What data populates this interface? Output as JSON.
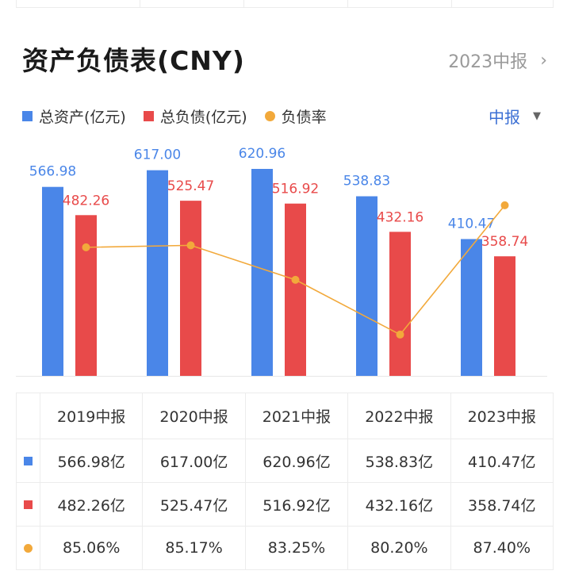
{
  "header": {
    "title": "资产负债表(CNY)",
    "period_link": "2023中报"
  },
  "legend": [
    {
      "label": "总资产(亿元)",
      "color": "#4a86e8",
      "shape": "square"
    },
    {
      "label": "总负债(亿元)",
      "color": "#e84a4a",
      "shape": "square"
    },
    {
      "label": "负债率",
      "color": "#f2a93b",
      "shape": "circle"
    }
  ],
  "period_select": {
    "label": "中报"
  },
  "colors": {
    "assets": "#4a86e8",
    "liabilities": "#e84a4a",
    "ratio": "#f2a93b"
  },
  "chart_data": {
    "type": "bar",
    "categories": [
      "2019中报",
      "2020中报",
      "2021中报",
      "2022中报",
      "2023中报"
    ],
    "series": [
      {
        "name": "总资产(亿元)",
        "type": "bar",
        "values": [
          566.98,
          617.0,
          620.96,
          538.83,
          410.47
        ],
        "labels": [
          "566.98",
          "617.00",
          "620.96",
          "538.83",
          "410.47"
        ]
      },
      {
        "name": "总负债(亿元)",
        "type": "bar",
        "values": [
          482.26,
          525.47,
          516.92,
          432.16,
          358.74
        ],
        "labels": [
          "482.26",
          "525.47",
          "516.92",
          "432.16",
          "358.74"
        ]
      },
      {
        "name": "负债率",
        "type": "line",
        "values": [
          85.06,
          85.17,
          83.25,
          80.2,
          87.4
        ]
      }
    ],
    "ylim": [
      0,
      640
    ],
    "ratio_ylim": [
      77.9,
      90.0
    ]
  },
  "table": {
    "headers": [
      "2019中报",
      "2020中报",
      "2021中报",
      "2022中报",
      "2023中报"
    ],
    "rows": [
      {
        "marker": "square",
        "color": "#4a86e8",
        "cells": [
          "566.98亿",
          "617.00亿",
          "620.96亿",
          "538.83亿",
          "410.47亿"
        ]
      },
      {
        "marker": "square",
        "color": "#e84a4a",
        "cells": [
          "482.26亿",
          "525.47亿",
          "516.92亿",
          "432.16亿",
          "358.74亿"
        ]
      },
      {
        "marker": "circle",
        "color": "#f2a93b",
        "cells": [
          "85.06%",
          "85.17%",
          "83.25%",
          "80.20%",
          "87.40%"
        ]
      }
    ]
  }
}
